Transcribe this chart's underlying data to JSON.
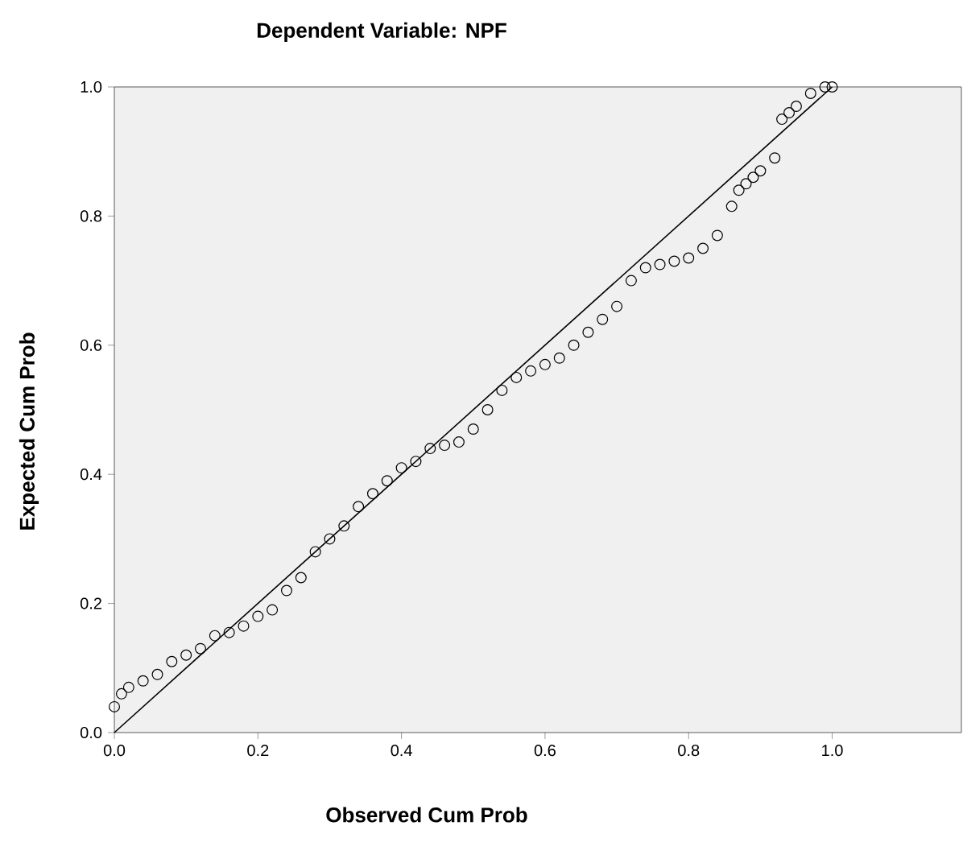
{
  "chart_data": {
    "type": "scatter",
    "title": "Dependent Variable: NPF",
    "xlabel": "Observed Cum Prob",
    "ylabel": "Expected Cum Prob",
    "xlim": [
      0,
      1.18
    ],
    "ylim": [
      0,
      1
    ],
    "xticks": [
      {
        "value": 0,
        "label": "0.0"
      },
      {
        "value": 0.2,
        "label": "0.2"
      },
      {
        "value": 0.4,
        "label": "0.4"
      },
      {
        "value": 0.6,
        "label": "0.6"
      },
      {
        "value": 0.8,
        "label": "0.8"
      },
      {
        "value": 1,
        "label": "1.0"
      }
    ],
    "yticks": [
      {
        "value": 0,
        "label": "0.0"
      },
      {
        "value": 0.2,
        "label": "0.2"
      },
      {
        "value": 0.4,
        "label": "0.4"
      },
      {
        "value": 0.6,
        "label": "0.6"
      },
      {
        "value": 0.8,
        "label": "0.8"
      },
      {
        "value": 1,
        "label": "1.0"
      }
    ],
    "series": [
      {
        "marker": "circle",
        "color": "#000000",
        "x": [
          0.0,
          0.01,
          0.02,
          0.04,
          0.06,
          0.08,
          0.1,
          0.12,
          0.14,
          0.16,
          0.18,
          0.2,
          0.22,
          0.24,
          0.26,
          0.28,
          0.3,
          0.32,
          0.34,
          0.36,
          0.38,
          0.4,
          0.42,
          0.44,
          0.46,
          0.48,
          0.5,
          0.52,
          0.54,
          0.56,
          0.58,
          0.6,
          0.62,
          0.64,
          0.66,
          0.68,
          0.7,
          0.72,
          0.74,
          0.76,
          0.78,
          0.8,
          0.82,
          0.84,
          0.86,
          0.87,
          0.88,
          0.89,
          0.9,
          0.92,
          0.93,
          0.94,
          0.95,
          0.97,
          0.99,
          1.0
        ],
        "values": [
          0.04,
          0.06,
          0.07,
          0.08,
          0.09,
          0.11,
          0.12,
          0.13,
          0.15,
          0.155,
          0.165,
          0.18,
          0.19,
          0.22,
          0.24,
          0.28,
          0.3,
          0.32,
          0.35,
          0.37,
          0.39,
          0.41,
          0.42,
          0.44,
          0.445,
          0.45,
          0.47,
          0.5,
          0.53,
          0.55,
          0.56,
          0.57,
          0.58,
          0.6,
          0.62,
          0.64,
          0.66,
          0.7,
          0.72,
          0.725,
          0.73,
          0.735,
          0.75,
          0.77,
          0.815,
          0.84,
          0.85,
          0.86,
          0.87,
          0.89,
          0.95,
          0.96,
          0.97,
          0.99,
          1.0,
          1.0
        ]
      },
      {
        "type": "line",
        "marker": "none",
        "color": "#000000",
        "x": [
          0,
          1
        ],
        "values": [
          0,
          1
        ]
      }
    ]
  }
}
